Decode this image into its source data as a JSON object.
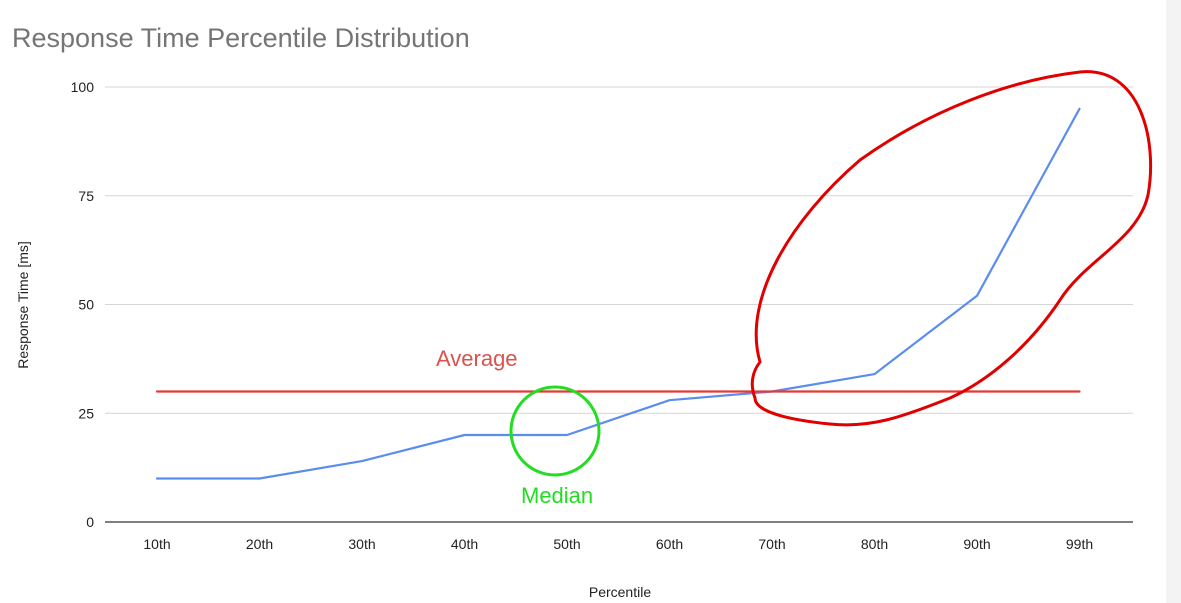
{
  "chart_data": {
    "type": "line",
    "title": "Response Time Percentile Distribution",
    "xlabel": "Percentile",
    "ylabel": "Response Time [ms]",
    "categories": [
      "10th",
      "20th",
      "30th",
      "40th",
      "50th",
      "60th",
      "70th",
      "80th",
      "90th",
      "99th"
    ],
    "series": [
      {
        "name": "",
        "values": [
          10,
          10,
          14,
          20,
          20,
          28,
          30,
          34,
          52,
          95
        ],
        "color": "#5b8def"
      },
      {
        "name": "",
        "values": [
          30,
          30,
          30,
          30,
          30,
          30,
          30,
          30,
          30,
          30
        ],
        "color": "#e53935"
      }
    ],
    "ylim": [
      0,
      100
    ],
    "yticks": [
      0,
      25,
      50,
      75,
      100
    ],
    "grid": true,
    "legend": "none",
    "annotations": {
      "average_label": "Average",
      "average_color": "#d9534f",
      "median_label": "Median",
      "median_color": "#22dd22",
      "tail_highlight_color": "#e00000"
    }
  }
}
